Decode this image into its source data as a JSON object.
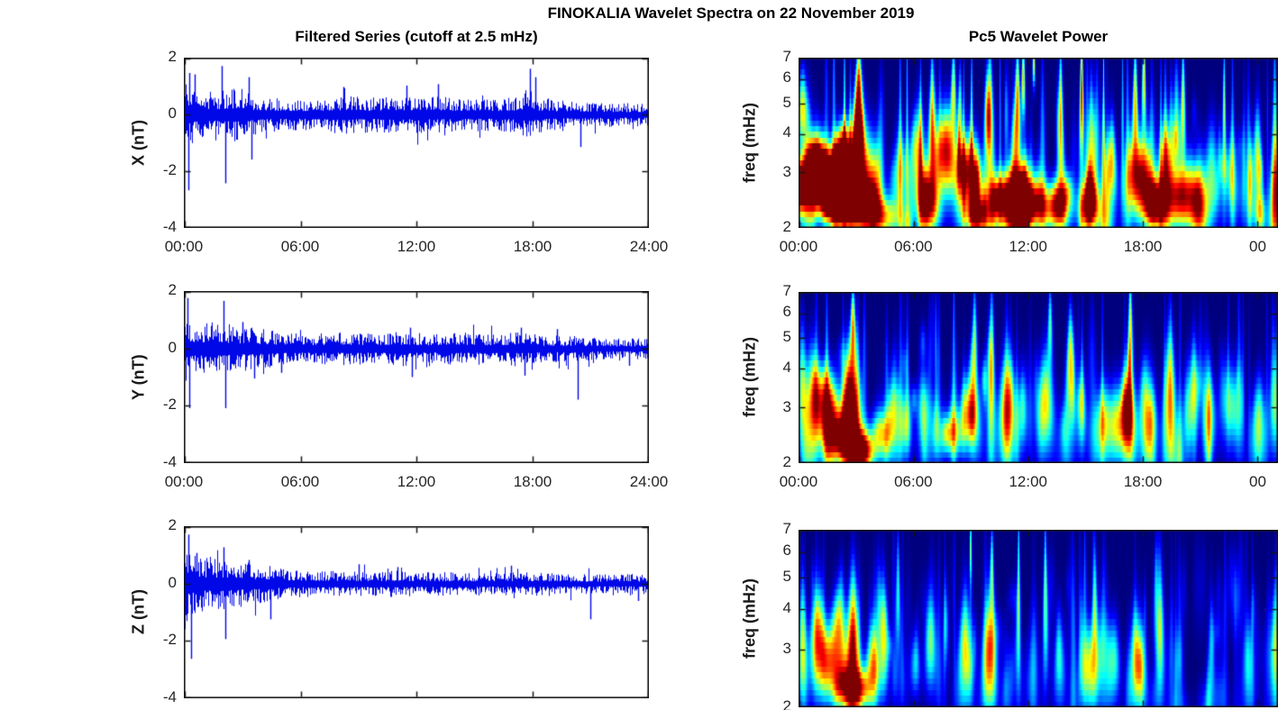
{
  "figure": {
    "title": "FINOKALIA Wavelet Spectra on 22 November 2019",
    "background": "#FFFFFF",
    "axis_color": "#141414",
    "tick_text_color": "#262626"
  },
  "left_column": {
    "title": "Filtered Series (cutoff at 2.5 mHz)",
    "x_tick_labels": [
      "00:00",
      "06:00",
      "12:00",
      "18:00",
      "24:00"
    ],
    "line_color": "#0008E8"
  },
  "right_column": {
    "title": "Pc5 Wavelet Power",
    "ylabel": "freq (mHz)",
    "x_tick_labels": [
      "00:00",
      "06:00",
      "12:00",
      "18:00",
      "00"
    ],
    "y_tick_labels": [
      "7",
      "6",
      "5",
      "4",
      "3",
      "2"
    ],
    "colormap": "jet"
  },
  "chart_data": [
    {
      "id": "x-filtered",
      "type": "line",
      "panel": "left-top",
      "ylabel": "X (nT)",
      "ylim": [
        -4,
        2
      ],
      "yticks": [
        2,
        0,
        -2,
        -4
      ],
      "xlim_hours": [
        0,
        24
      ],
      "xticks_hours": [
        0,
        6,
        12,
        18,
        24
      ],
      "xtick_labels": [
        "00:00",
        "06:00",
        "12:00",
        "18:00",
        "24:00"
      ],
      "xtick_labels_visible": true,
      "line_color": "#0008E8",
      "seed": 11,
      "pattern": "zero-centered dense noise, largest before 04:00, burst near 18:00",
      "noise_envelope": {
        "hours": [
          0,
          0.4,
          1,
          2,
          3,
          3.6,
          4.5,
          6,
          8,
          10,
          12,
          14,
          16,
          17,
          17.8,
          18.4,
          19.5,
          21,
          22.5,
          24
        ],
        "amplitude_nT": [
          1.35,
          1.0,
          0.8,
          0.85,
          0.95,
          0.7,
          0.6,
          0.55,
          0.65,
          0.6,
          0.65,
          0.6,
          0.55,
          0.6,
          0.9,
          0.6,
          0.5,
          0.45,
          0.4,
          0.4
        ]
      },
      "spikes": [
        [
          0.2,
          -2.7
        ],
        [
          0.25,
          1.5
        ],
        [
          0.5,
          1.45
        ],
        [
          1.9,
          1.75
        ],
        [
          2.1,
          -2.45
        ],
        [
          3.3,
          1.35
        ],
        [
          3.45,
          -1.6
        ],
        [
          8.2,
          1.0
        ],
        [
          11.5,
          1.05
        ],
        [
          13.1,
          1.1
        ],
        [
          17.9,
          1.65
        ],
        [
          18.15,
          1.35
        ],
        [
          20.5,
          -1.15
        ]
      ]
    },
    {
      "id": "y-filtered",
      "type": "line",
      "panel": "left-middle",
      "ylabel": "Y (nT)",
      "ylim": [
        -4,
        2
      ],
      "yticks": [
        2,
        0,
        -2,
        -4
      ],
      "xlim_hours": [
        0,
        24
      ],
      "xticks_hours": [
        0,
        6,
        12,
        18,
        24
      ],
      "xtick_labels": [
        "00:00",
        "06:00",
        "12:00",
        "18:00",
        "24:00"
      ],
      "xtick_labels_visible": true,
      "line_color": "#0008E8",
      "seed": 22,
      "pattern": "zero-centered noise decaying after 04:00, deep spike near 20:20",
      "noise_envelope": {
        "hours": [
          0,
          0.4,
          1,
          2,
          2.6,
          3.2,
          4,
          5,
          6,
          8,
          10,
          11.7,
          12.5,
          14,
          15,
          16,
          17.5,
          18.5,
          20,
          21,
          22,
          24
        ],
        "amplitude_nT": [
          1.3,
          1.0,
          0.85,
          0.95,
          0.75,
          0.8,
          0.65,
          0.6,
          0.5,
          0.55,
          0.55,
          0.6,
          0.5,
          0.55,
          0.55,
          0.5,
          0.6,
          0.45,
          0.45,
          0.4,
          0.35,
          0.35
        ]
      },
      "spikes": [
        [
          0.15,
          1.8
        ],
        [
          0.25,
          -2.1
        ],
        [
          2.0,
          1.7
        ],
        [
          2.1,
          -2.1
        ],
        [
          3.0,
          0.95
        ],
        [
          3.6,
          -1.05
        ],
        [
          5.0,
          -0.85
        ],
        [
          11.65,
          0.75
        ],
        [
          11.75,
          -1.0
        ],
        [
          17.4,
          0.75
        ],
        [
          17.6,
          -0.95
        ],
        [
          19.3,
          0.7
        ],
        [
          20.35,
          -1.8
        ],
        [
          23.0,
          -0.6
        ]
      ]
    },
    {
      "id": "z-filtered",
      "type": "line",
      "panel": "left-bottom",
      "ylabel": "Z (nT)",
      "ylim": [
        -4,
        2
      ],
      "yticks": [
        2,
        0,
        -2,
        -4
      ],
      "xlim_hours": [
        0,
        24
      ],
      "xticks_hours": [
        0,
        6,
        12,
        18,
        24
      ],
      "xtick_labels": [],
      "xtick_labels_visible": false,
      "line_color": "#0008E8",
      "seed": 33,
      "pattern": "zero-centered noise, strongest before 03:00, quiet afterwards",
      "noise_envelope": {
        "hours": [
          0,
          0.4,
          1,
          2,
          3,
          4,
          5,
          6,
          8,
          10,
          11,
          12,
          14,
          16,
          18,
          20,
          22,
          24
        ],
        "amplitude_nT": [
          1.4,
          1.15,
          0.95,
          0.85,
          0.8,
          0.65,
          0.55,
          0.45,
          0.45,
          0.42,
          0.45,
          0.4,
          0.4,
          0.38,
          0.4,
          0.35,
          0.33,
          0.35
        ]
      },
      "spikes": [
        [
          0.2,
          1.75
        ],
        [
          0.35,
          -2.65
        ],
        [
          0.6,
          1.1
        ],
        [
          2.0,
          1.3
        ],
        [
          2.1,
          -1.95
        ],
        [
          3.3,
          0.85
        ],
        [
          4.45,
          -1.25
        ],
        [
          9.0,
          0.7
        ],
        [
          11.0,
          0.6
        ],
        [
          16.9,
          0.65
        ],
        [
          21.0,
          -1.25
        ],
        [
          23.5,
          -0.6
        ]
      ]
    },
    {
      "id": "x-wavelet",
      "type": "heatmap",
      "panel": "right-top",
      "ylabel": "freq (mHz)",
      "yscale": "log",
      "ylim_mHz": [
        2,
        7
      ],
      "yticks": [
        7,
        6,
        5,
        4,
        3,
        2
      ],
      "xlim_hours": [
        0,
        25.06
      ],
      "xticks_hours": [
        0,
        6,
        12,
        18,
        24
      ],
      "xtick_labels": [
        "00:00",
        "06:00",
        "12:00",
        "18:00",
        "00"
      ],
      "xtick_labels_visible": true,
      "colormap": "jet",
      "background_level": 0.5,
      "seed": 101,
      "blob_format": "[hour, freq_mHz, time_sigma_h, logfreq_sigma, power_0to1]",
      "blobs": [
        [
          0.1,
          2.7,
          0.3,
          0.14,
          1.0
        ],
        [
          0.2,
          4.8,
          0.2,
          0.18,
          0.55
        ],
        [
          0.8,
          3.3,
          0.22,
          0.12,
          0.8
        ],
        [
          1.2,
          3.0,
          0.28,
          0.14,
          1.0
        ],
        [
          1.6,
          2.4,
          0.2,
          0.1,
          0.85
        ],
        [
          1.95,
          2.9,
          0.25,
          0.16,
          1.0
        ],
        [
          2.35,
          3.6,
          0.2,
          0.13,
          0.85
        ],
        [
          2.6,
          2.3,
          0.2,
          0.1,
          0.8
        ],
        [
          3.1,
          3.0,
          0.3,
          0.3,
          1.0
        ],
        [
          3.15,
          5.6,
          0.14,
          0.22,
          0.85
        ],
        [
          3.6,
          2.4,
          0.16,
          0.1,
          0.8
        ],
        [
          4.5,
          2.2,
          0.3,
          0.1,
          0.5
        ],
        [
          5.3,
          3.0,
          0.15,
          0.22,
          0.45
        ],
        [
          6.3,
          3.5,
          0.15,
          0.25,
          0.6
        ],
        [
          6.65,
          2.5,
          0.2,
          0.15,
          0.7
        ],
        [
          7.0,
          4.2,
          0.12,
          0.32,
          0.65
        ],
        [
          7.7,
          3.5,
          0.25,
          0.22,
          0.95
        ],
        [
          8.1,
          5.5,
          0.1,
          0.22,
          0.6
        ],
        [
          8.9,
          3.0,
          0.25,
          0.2,
          0.95
        ],
        [
          9.3,
          2.2,
          0.2,
          0.1,
          0.7
        ],
        [
          10.0,
          4.5,
          0.12,
          0.35,
          0.7
        ],
        [
          10.45,
          2.5,
          0.2,
          0.12,
          0.7
        ],
        [
          11.5,
          2.5,
          0.35,
          0.16,
          1.0
        ],
        [
          11.45,
          5.0,
          0.09,
          0.3,
          0.75
        ],
        [
          11.75,
          6.0,
          0.08,
          0.2,
          0.7
        ],
        [
          12.3,
          6.8,
          0.07,
          0.12,
          0.65
        ],
        [
          12.6,
          2.4,
          0.2,
          0.12,
          0.55
        ],
        [
          13.6,
          2.4,
          0.2,
          0.12,
          0.75
        ],
        [
          13.7,
          4.5,
          0.08,
          0.35,
          0.7
        ],
        [
          14.8,
          5.5,
          0.07,
          0.3,
          0.6
        ],
        [
          15.2,
          2.4,
          0.2,
          0.12,
          0.7
        ],
        [
          15.3,
          4.0,
          0.08,
          0.3,
          0.5
        ],
        [
          16.3,
          3.0,
          0.15,
          0.2,
          0.45
        ],
        [
          17.6,
          5.0,
          0.09,
          0.3,
          0.7
        ],
        [
          17.95,
          2.9,
          0.25,
          0.2,
          1.0
        ],
        [
          18.05,
          6.0,
          0.08,
          0.25,
          0.7
        ],
        [
          18.6,
          2.4,
          0.2,
          0.12,
          0.75
        ],
        [
          19.2,
          3.3,
          0.15,
          0.2,
          0.7
        ],
        [
          20.0,
          2.5,
          0.35,
          0.16,
          0.95
        ],
        [
          20.1,
          5.0,
          0.08,
          0.3,
          0.6
        ],
        [
          21.6,
          3.0,
          0.15,
          0.25,
          0.45
        ],
        [
          22.6,
          3.0,
          0.12,
          0.2,
          0.4
        ],
        [
          24.0,
          3.2,
          0.1,
          0.3,
          0.45
        ],
        [
          25.0,
          2.8,
          0.12,
          0.3,
          0.5
        ]
      ]
    },
    {
      "id": "y-wavelet",
      "type": "heatmap",
      "panel": "right-middle",
      "ylabel": "freq (mHz)",
      "yscale": "log",
      "ylim_mHz": [
        2,
        7
      ],
      "yticks": [
        7,
        6,
        5,
        4,
        3,
        2
      ],
      "xlim_hours": [
        0,
        25.06
      ],
      "xticks_hours": [
        0,
        6,
        12,
        18,
        24
      ],
      "xtick_labels": [
        "00:00",
        "06:00",
        "12:00",
        "18:00",
        "00"
      ],
      "xtick_labels_visible": true,
      "colormap": "jet",
      "background_level": 0.3,
      "seed": 202,
      "blob_format": "[hour, freq_mHz, time_sigma_h, logfreq_sigma, power_0to1]",
      "blobs": [
        [
          0.2,
          3.5,
          0.12,
          0.3,
          0.5
        ],
        [
          0.8,
          3.2,
          0.2,
          0.25,
          0.6
        ],
        [
          1.6,
          3.0,
          0.25,
          0.18,
          0.8
        ],
        [
          2.3,
          2.4,
          0.25,
          0.12,
          0.9
        ],
        [
          2.8,
          3.0,
          0.18,
          0.3,
          1.0
        ],
        [
          2.85,
          5.5,
          0.1,
          0.2,
          0.65
        ],
        [
          3.4,
          2.2,
          0.2,
          0.1,
          0.75
        ],
        [
          4.2,
          2.5,
          0.15,
          0.12,
          0.5
        ],
        [
          4.9,
          2.8,
          0.15,
          0.18,
          0.45
        ],
        [
          5.6,
          2.6,
          0.12,
          0.15,
          0.4
        ],
        [
          6.5,
          3.0,
          0.12,
          0.2,
          0.4
        ],
        [
          7.2,
          2.5,
          0.12,
          0.15,
          0.35
        ],
        [
          8.1,
          2.5,
          0.18,
          0.12,
          0.45
        ],
        [
          8.95,
          2.9,
          0.2,
          0.18,
          0.75
        ],
        [
          9.2,
          4.8,
          0.09,
          0.28,
          0.5
        ],
        [
          10.1,
          4.0,
          0.08,
          0.4,
          0.45
        ],
        [
          10.9,
          2.9,
          0.18,
          0.28,
          0.78
        ],
        [
          11.7,
          3.0,
          0.1,
          0.2,
          0.4
        ],
        [
          12.9,
          3.1,
          0.18,
          0.25,
          0.65
        ],
        [
          13.15,
          5.5,
          0.09,
          0.2,
          0.45
        ],
        [
          14.2,
          3.9,
          0.1,
          0.28,
          0.45
        ],
        [
          14.8,
          3.0,
          0.1,
          0.2,
          0.4
        ],
        [
          16.1,
          2.7,
          0.25,
          0.18,
          0.5
        ],
        [
          17.1,
          2.8,
          0.18,
          0.2,
          0.75
        ],
        [
          17.35,
          5.2,
          0.09,
          0.3,
          0.5
        ],
        [
          18.2,
          2.9,
          0.18,
          0.25,
          0.5
        ],
        [
          19.4,
          3.2,
          0.14,
          0.35,
          0.72
        ],
        [
          20.7,
          3.5,
          0.1,
          0.25,
          0.4
        ],
        [
          21.5,
          2.8,
          0.13,
          0.2,
          0.35
        ],
        [
          22.7,
          3.0,
          0.15,
          0.2,
          0.3
        ],
        [
          24.1,
          2.9,
          0.12,
          0.2,
          0.32
        ],
        [
          24.9,
          3.0,
          0.12,
          0.25,
          0.42
        ]
      ]
    },
    {
      "id": "z-wavelet",
      "type": "heatmap",
      "panel": "right-bottom",
      "ylabel": "freq (mHz)",
      "yscale": "log",
      "ylim_mHz": [
        2,
        7
      ],
      "yticks": [
        7,
        6,
        5,
        4,
        3,
        2
      ],
      "xlim_hours": [
        0,
        25.06
      ],
      "xticks_hours": [
        0,
        6,
        12,
        18,
        24
      ],
      "xtick_labels": [],
      "xtick_labels_visible": false,
      "colormap": "jet",
      "background_level": 0.24,
      "seed": 303,
      "blob_format": "[hour, freq_mHz, time_sigma_h, logfreq_sigma, power_0to1]",
      "blobs": [
        [
          0.2,
          3.2,
          0.1,
          0.3,
          0.45
        ],
        [
          1.0,
          3.4,
          0.18,
          0.2,
          0.55
        ],
        [
          1.6,
          2.7,
          0.28,
          0.18,
          0.7
        ],
        [
          2.1,
          3.6,
          0.18,
          0.18,
          0.6
        ],
        [
          2.45,
          2.3,
          0.18,
          0.1,
          0.6
        ],
        [
          2.85,
          3.0,
          0.14,
          0.35,
          1.0
        ],
        [
          3.3,
          2.3,
          0.15,
          0.1,
          0.6
        ],
        [
          3.9,
          2.6,
          0.15,
          0.15,
          0.5
        ],
        [
          4.5,
          3.2,
          0.1,
          0.25,
          0.45
        ],
        [
          5.2,
          4.5,
          0.07,
          0.3,
          0.4
        ],
        [
          6.1,
          2.7,
          0.1,
          0.15,
          0.3
        ],
        [
          6.9,
          3.1,
          0.12,
          0.22,
          0.45
        ],
        [
          7.7,
          3.6,
          0.07,
          0.2,
          0.3
        ],
        [
          8.7,
          3.0,
          0.13,
          0.3,
          0.5
        ],
        [
          9.0,
          6.2,
          0.05,
          0.15,
          0.45
        ],
        [
          10.0,
          3.0,
          0.14,
          0.3,
          0.72
        ],
        [
          10.1,
          5.5,
          0.06,
          0.2,
          0.4
        ],
        [
          11.5,
          4.5,
          0.05,
          0.45,
          0.42
        ],
        [
          12.9,
          4.5,
          0.06,
          0.4,
          0.45
        ],
        [
          13.6,
          3.0,
          0.08,
          0.2,
          0.3
        ],
        [
          15.2,
          2.7,
          0.15,
          0.2,
          0.55
        ],
        [
          15.5,
          4.0,
          0.07,
          0.3,
          0.4
        ],
        [
          16.5,
          2.8,
          0.12,
          0.2,
          0.4
        ],
        [
          17.6,
          2.9,
          0.1,
          0.25,
          0.5
        ],
        [
          17.9,
          2.7,
          0.1,
          0.2,
          0.45
        ],
        [
          18.9,
          3.2,
          0.08,
          0.3,
          0.4
        ],
        [
          19.9,
          2.8,
          0.08,
          0.2,
          0.3
        ],
        [
          21.6,
          3.0,
          0.06,
          0.25,
          0.25
        ],
        [
          23.5,
          2.8,
          0.1,
          0.2,
          0.3
        ],
        [
          24.9,
          3.0,
          0.1,
          0.3,
          0.45
        ]
      ]
    }
  ]
}
